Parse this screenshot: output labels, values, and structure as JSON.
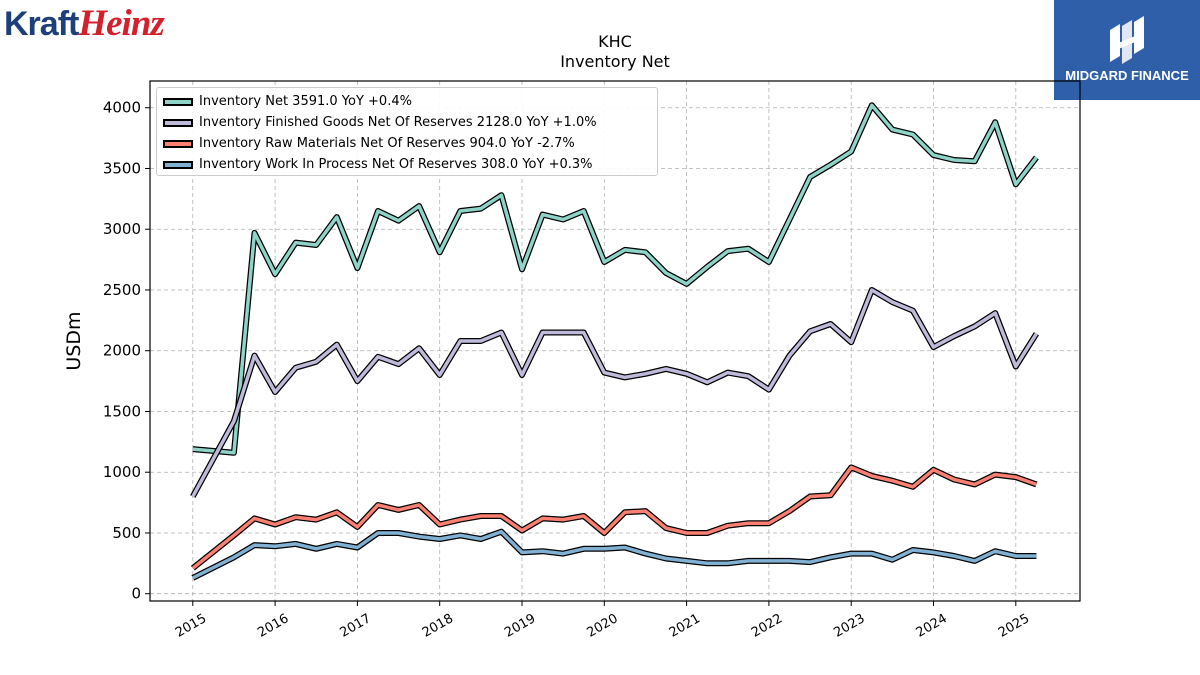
{
  "brand": {
    "logo_text_1": "Kraft",
    "logo_text_2": "Heinz",
    "badge_text": "MIDGARD FINANCE",
    "badge_color": "#2f5fa8"
  },
  "chart_data": {
    "type": "line",
    "title": "KHC",
    "subtitle": "Inventory Net",
    "xlabel": "",
    "ylabel": "USDm",
    "xlim": [
      2014.48,
      2025.78
    ],
    "ylim": [
      -60,
      4220
    ],
    "yticks": [
      0,
      500,
      1000,
      1500,
      2000,
      2500,
      3000,
      3500,
      4000
    ],
    "xticks": [
      "2015",
      "2016",
      "2017",
      "2018",
      "2019",
      "2020",
      "2021",
      "2022",
      "2023",
      "2024",
      "2025"
    ],
    "grid": true,
    "legend_position": "top-left",
    "x": [
      2015.0,
      2015.5,
      2015.75,
      2016.0,
      2016.25,
      2016.5,
      2016.75,
      2017.0,
      2017.25,
      2017.5,
      2017.75,
      2018.0,
      2018.25,
      2018.5,
      2018.75,
      2019.0,
      2019.25,
      2019.5,
      2019.75,
      2020.0,
      2020.25,
      2020.5,
      2020.75,
      2021.0,
      2021.25,
      2021.5,
      2021.75,
      2022.0,
      2022.25,
      2022.5,
      2022.75,
      2023.0,
      2023.25,
      2023.5,
      2023.75,
      2024.0,
      2024.25,
      2024.5,
      2024.75,
      2025.0,
      2025.25
    ],
    "series": [
      {
        "name": "Inventory Net  3591.0 YoY +0.4%",
        "color": "#8dd3c7",
        "values": [
          1190,
          1160,
          2970,
          2630,
          2890,
          2870,
          3100,
          2680,
          3150,
          3070,
          3190,
          2810,
          3150,
          3170,
          3280,
          2670,
          3120,
          3080,
          3150,
          2730,
          2830,
          2810,
          2640,
          2550,
          2690,
          2820,
          2840,
          2730,
          3080,
          3430,
          3530,
          3640,
          4020,
          3820,
          3780,
          3610,
          3570,
          3560,
          3880,
          3370,
          3590
        ]
      },
      {
        "name": "Inventory Finished Goods Net Of Reserves  2128.0 YoY +1.0%",
        "color": "#bebada",
        "values": [
          800,
          1420,
          1960,
          1660,
          1860,
          1910,
          2050,
          1750,
          1950,
          1890,
          2020,
          1800,
          2080,
          2080,
          2150,
          1800,
          2150,
          2150,
          2150,
          1820,
          1780,
          1810,
          1850,
          1810,
          1740,
          1820,
          1790,
          1680,
          1960,
          2160,
          2220,
          2070,
          2500,
          2400,
          2330,
          2030,
          2120,
          2200,
          2310,
          1870,
          2140
        ]
      },
      {
        "name": "Inventory Raw Materials Net Of Reserves  904.0 YoY -2.7%",
        "color": "#fb8072",
        "values": [
          210,
          480,
          620,
          570,
          630,
          610,
          670,
          550,
          730,
          690,
          730,
          570,
          610,
          640,
          640,
          520,
          620,
          610,
          640,
          500,
          670,
          680,
          540,
          500,
          500,
          560,
          580,
          580,
          680,
          800,
          810,
          1040,
          970,
          930,
          880,
          1020,
          940,
          900,
          980,
          960,
          900
        ]
      },
      {
        "name": "Inventory Work In Process Net Of Reserves  308.0 YoY +0.3%",
        "color": "#80b1d3",
        "values": [
          130,
          300,
          400,
          390,
          410,
          370,
          410,
          380,
          500,
          500,
          470,
          450,
          480,
          450,
          510,
          340,
          350,
          330,
          370,
          370,
          380,
          330,
          290,
          270,
          250,
          250,
          270,
          270,
          270,
          260,
          300,
          330,
          330,
          280,
          360,
          340,
          310,
          270,
          350,
          310,
          310
        ]
      }
    ]
  }
}
